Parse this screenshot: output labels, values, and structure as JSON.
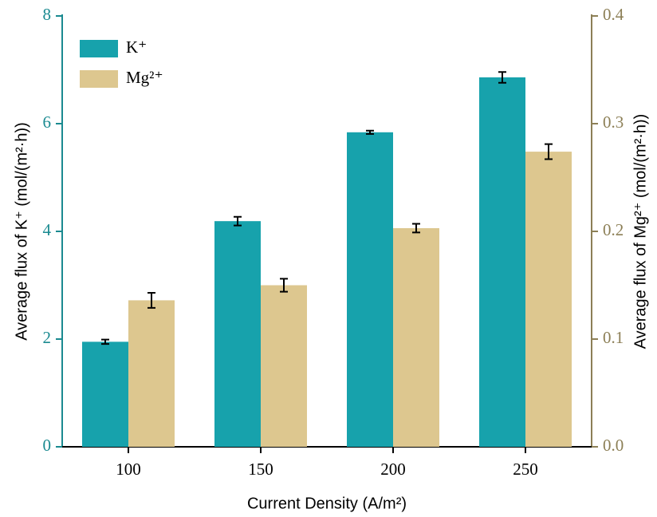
{
  "chart_data": {
    "type": "bar",
    "x_label": "Current Density (A/m²)",
    "y_label": "Average flux of K⁺ (mol/(m²·h))",
    "y2_label": "Average flux of Mg²⁺ (mol/(m²·h))",
    "categories": [
      "100",
      "150",
      "200",
      "250"
    ],
    "series": [
      {
        "name": "K⁺",
        "color": "#17a2ac",
        "values": [
          1.95,
          4.19,
          5.84,
          6.86
        ],
        "errors": [
          0.04,
          0.08,
          0.03,
          0.1
        ]
      },
      {
        "name": "Mg²⁺",
        "color": "#ddc78f",
        "axis": "y2",
        "values": [
          0.136,
          0.15,
          0.203,
          0.274
        ],
        "errors": [
          0.007,
          0.006,
          0.004,
          0.007
        ]
      }
    ],
    "ylim": [
      0,
      8
    ],
    "yticks": [
      0,
      2,
      4,
      6,
      8
    ],
    "y2lim": [
      0,
      0.4
    ],
    "y2ticks": [
      {
        "value": 0,
        "label": "0.0"
      },
      0.1,
      0.2,
      0.3,
      0.4
    ],
    "y_color": "#1a8a90",
    "y2_color": "#8c7f56",
    "legend": "top-left"
  }
}
